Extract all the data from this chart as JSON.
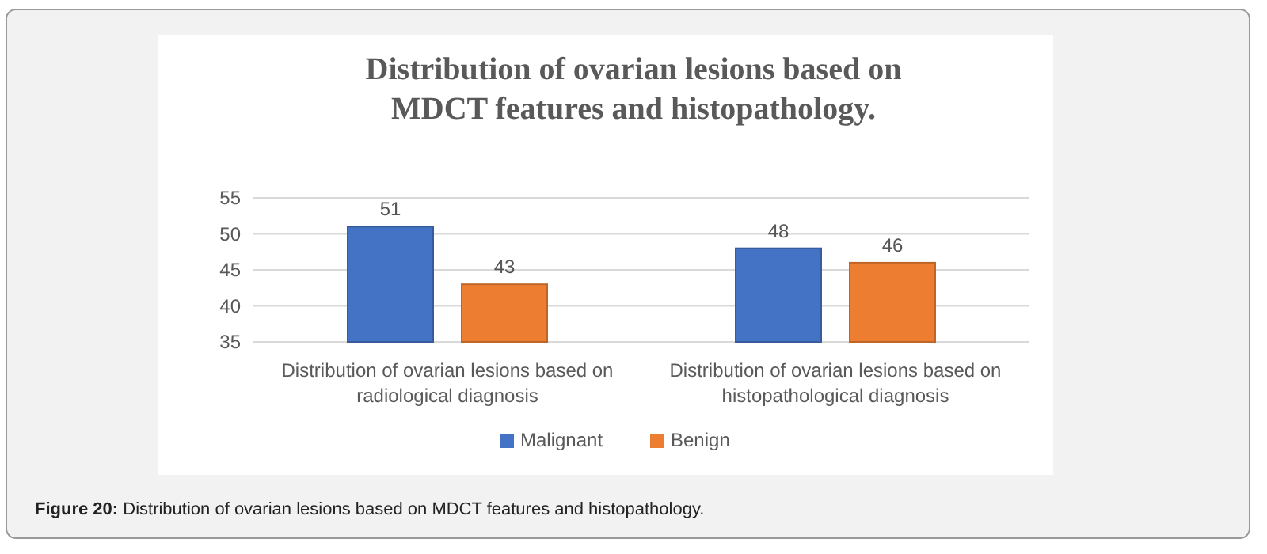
{
  "chart_data": {
    "type": "bar",
    "title": "Distribution of ovarian lesions based on\nMDCT features and histopathology.",
    "categories": [
      "Distribution of ovarian lesions based on radiological diagnosis",
      "Distribution of ovarian lesions based on histopathological diagnosis"
    ],
    "series": [
      {
        "name": "Malignant",
        "color": "#4472c4",
        "values": [
          51,
          48
        ]
      },
      {
        "name": "Benign",
        "color": "#ed7d31",
        "values": [
          43,
          46
        ]
      }
    ],
    "ylim": [
      35,
      55
    ],
    "yticks": [
      35,
      40,
      45,
      50,
      55
    ],
    "grid": "y",
    "legend": "bottom",
    "data_labels": true,
    "annotations": [
      "Figure 20: Distribution of ovarian lesions based on MDCT features and histopathology."
    ]
  }
}
